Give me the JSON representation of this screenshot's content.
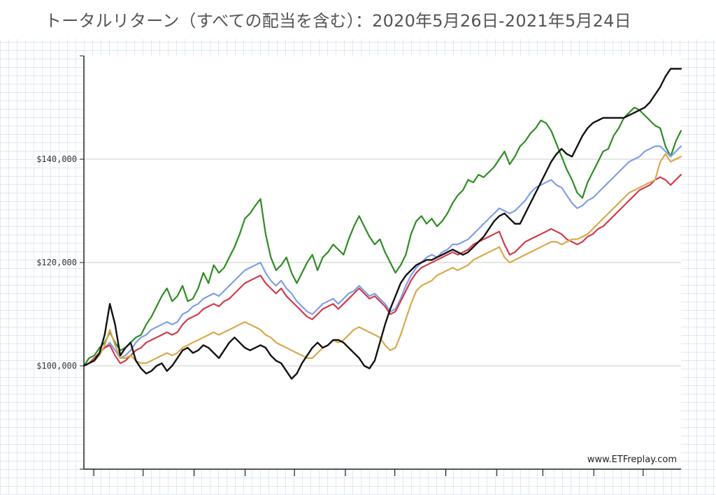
{
  "title": "トータルリターン（すべての配当を含む）：2020年5月26日-2021年5月24日",
  "watermark": "www.ETFreplay.com",
  "chart_data": {
    "type": "line",
    "title": "トータルリターン（すべての配当を含む）：2020年5月26日-2021年5月24日",
    "xlabel": "",
    "ylabel": "",
    "x_range": [
      "2020-05-26",
      "2021-05-24"
    ],
    "ylim": [
      80000,
      160000
    ],
    "y_ticks": [
      100000,
      120000,
      140000
    ],
    "y_tick_labels": [
      "$100,000",
      "$120,000",
      "$140,000"
    ],
    "grid": "horizontal",
    "legend": "none",
    "series": [
      {
        "color": "#2e8b22",
        "values": [
          100000,
          101500,
          102000,
          103500,
          104500,
          106500,
          104500,
          103000,
          103500,
          104500,
          105500,
          106000,
          108000,
          109500,
          111500,
          113500,
          115000,
          112500,
          113500,
          115500,
          112500,
          113000,
          115000,
          118000,
          116000,
          119500,
          118000,
          119000,
          121000,
          123000,
          125500,
          128500,
          129500,
          131000,
          132300,
          125500,
          121000,
          118500,
          119500,
          121000,
          118000,
          116000,
          118000,
          120000,
          121500,
          118500,
          121000,
          122000,
          123500,
          122500,
          121500,
          124500,
          127000,
          129000,
          127000,
          125000,
          123500,
          124500,
          122000,
          120000,
          118000,
          119500,
          121500,
          125500,
          128000,
          129000,
          127500,
          128500,
          127000,
          128000,
          129500,
          131500,
          133000,
          134000,
          136000,
          135500,
          137000,
          136500,
          137500,
          138500,
          140000,
          141500,
          139000,
          140500,
          142500,
          143500,
          145000,
          146000,
          147500,
          147000,
          145500,
          143000,
          140500,
          138000,
          136000,
          133500,
          132500,
          135500,
          137500,
          139500,
          141500,
          142000,
          144500,
          146000,
          148000,
          149000,
          150000,
          149500,
          148500,
          147500,
          146500,
          146000,
          142500,
          140500,
          143500,
          145500
        ]
      },
      {
        "color": "#7f9ee8",
        "values": [
          100000,
          100500,
          101500,
          102500,
          103500,
          104500,
          103000,
          101500,
          102000,
          103000,
          104500,
          105500,
          106000,
          107000,
          107500,
          108000,
          108500,
          108000,
          108500,
          110000,
          110500,
          111500,
          112000,
          113000,
          113500,
          114000,
          113500,
          114500,
          115500,
          116500,
          117500,
          118500,
          119000,
          119500,
          120000,
          118000,
          116500,
          115500,
          116500,
          115000,
          114000,
          112500,
          111500,
          110500,
          110000,
          111000,
          112000,
          112500,
          113000,
          112000,
          113000,
          114000,
          114500,
          115500,
          114500,
          113500,
          114000,
          113000,
          112000,
          110500,
          111000,
          113000,
          115500,
          117500,
          119000,
          120000,
          121000,
          121500,
          121000,
          122000,
          122500,
          123500,
          123500,
          124000,
          124500,
          125500,
          126500,
          127500,
          128500,
          129500,
          130500,
          130000,
          129500,
          130000,
          131000,
          132000,
          133500,
          134500,
          135000,
          135500,
          136000,
          135000,
          134500,
          133000,
          131500,
          130500,
          131000,
          132000,
          132500,
          133500,
          134500,
          135500,
          136500,
          137500,
          138500,
          139500,
          140000,
          140500,
          141500,
          142000,
          142500,
          142500,
          141500,
          140500,
          141500,
          142500
        ]
      },
      {
        "color": "#d03a4a",
        "values": [
          100000,
          100500,
          101500,
          102500,
          103500,
          104000,
          102000,
          100500,
          101000,
          102000,
          103000,
          103500,
          104500,
          105000,
          105500,
          106000,
          106500,
          106000,
          106500,
          108000,
          109000,
          109500,
          110000,
          111000,
          111500,
          112000,
          111500,
          112500,
          113000,
          114000,
          115000,
          116000,
          116500,
          117000,
          117500,
          116000,
          115000,
          114000,
          115000,
          113500,
          112500,
          111500,
          110500,
          109500,
          109000,
          110000,
          111000,
          111500,
          112000,
          111000,
          112000,
          113000,
          114000,
          115000,
          114000,
          113000,
          113500,
          112500,
          111500,
          110000,
          110500,
          112500,
          114500,
          116500,
          118000,
          119000,
          119500,
          120000,
          120500,
          121000,
          121500,
          122000,
          121500,
          122000,
          122500,
          123500,
          124000,
          124500,
          125000,
          125500,
          126000,
          123500,
          121500,
          122000,
          123000,
          124000,
          124500,
          125000,
          125500,
          126000,
          126500,
          126000,
          125500,
          124500,
          124000,
          123500,
          124000,
          125000,
          125500,
          126500,
          127000,
          128000,
          129000,
          130000,
          131000,
          132000,
          133000,
          134000,
          134500,
          135000,
          136000,
          136500,
          136000,
          135000,
          136000,
          137000
        ]
      },
      {
        "color": "#d9a84a",
        "values": [
          100000,
          100500,
          101000,
          102000,
          104000,
          107000,
          104000,
          101500,
          101500,
          102000,
          101000,
          100500,
          100500,
          101000,
          101500,
          102000,
          102500,
          102000,
          102500,
          103500,
          104000,
          104500,
          105000,
          105500,
          106000,
          106500,
          106000,
          106500,
          107000,
          107500,
          108000,
          108500,
          108000,
          107500,
          107000,
          106000,
          105500,
          104500,
          104000,
          103500,
          103000,
          102500,
          102000,
          101500,
          101500,
          102500,
          103500,
          104000,
          105000,
          104500,
          105000,
          106000,
          107000,
          107500,
          107000,
          106500,
          106000,
          105500,
          104000,
          103000,
          103500,
          106000,
          109000,
          112000,
          114500,
          115500,
          116000,
          116500,
          117500,
          118000,
          118500,
          119000,
          118500,
          119000,
          119500,
          120500,
          121000,
          121500,
          122000,
          122500,
          123000,
          121000,
          120000,
          120500,
          121000,
          121500,
          122000,
          122500,
          123000,
          123500,
          124000,
          124000,
          123500,
          124000,
          124500,
          124500,
          125000,
          125500,
          126500,
          127500,
          128500,
          129500,
          130500,
          131500,
          132500,
          133500,
          134000,
          134500,
          135000,
          135500,
          136000,
          139500,
          141000,
          139500,
          140000,
          140500
        ]
      },
      {
        "color": "#111111",
        "values": [
          100000,
          100500,
          101000,
          102500,
          106000,
          112000,
          108000,
          102000,
          103500,
          104500,
          101000,
          99500,
          98500,
          99000,
          100000,
          100500,
          99000,
          100000,
          101500,
          103000,
          103500,
          102500,
          103000,
          104000,
          103500,
          102500,
          101500,
          103000,
          104500,
          105500,
          104500,
          103500,
          103000,
          103500,
          104000,
          103500,
          102000,
          101000,
          100500,
          99000,
          97500,
          98500,
          100500,
          102000,
          103500,
          104500,
          103500,
          104000,
          105000,
          105000,
          104500,
          103500,
          102500,
          101500,
          100000,
          99500,
          101000,
          104500,
          108000,
          111000,
          113500,
          116000,
          117500,
          118500,
          119500,
          120000,
          120500,
          120500,
          121000,
          121500,
          122000,
          122500,
          122000,
          121500,
          122000,
          123000,
          124000,
          125000,
          126500,
          128000,
          129000,
          129500,
          128500,
          127500,
          127500,
          129500,
          131500,
          133500,
          135500,
          137500,
          139500,
          141000,
          142000,
          141000,
          140500,
          142500,
          144500,
          146000,
          147000,
          147500,
          148000,
          148000,
          148000,
          148000,
          148000,
          148500,
          149000,
          149500,
          150000,
          151000,
          152500,
          154000,
          156000,
          157500,
          157500,
          157500
        ]
      }
    ]
  }
}
